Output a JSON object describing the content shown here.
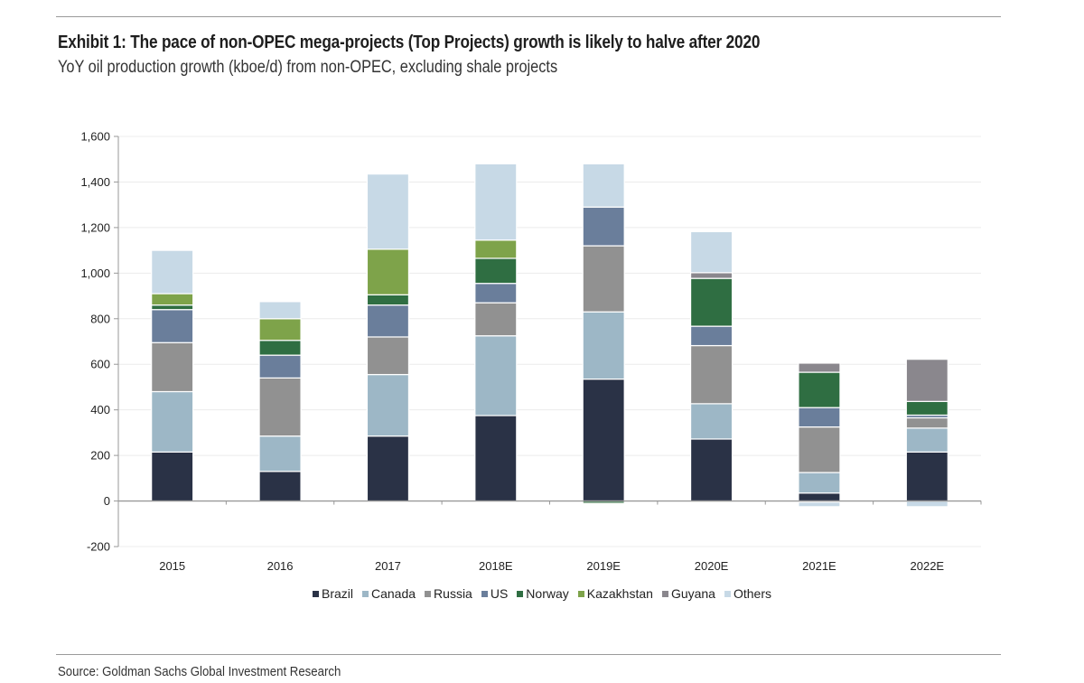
{
  "header": {
    "title": "Exhibit 1: The pace of non-OPEC mega-projects (Top Projects) growth is likely to halve after 2020",
    "subtitle": "YoY oil production growth (kboe/d) from non-OPEC, excluding shale projects"
  },
  "footer": {
    "source": "Source: Goldman Sachs Global Investment Research"
  },
  "chart_data": {
    "type": "bar",
    "stacked": true,
    "title": "Exhibit 1: The pace of non-OPEC mega-projects (Top Projects) growth is likely to halve after 2020",
    "subtitle": "YoY oil production growth (kboe/d) from non-OPEC, excluding shale projects",
    "xlabel": "",
    "ylabel": "",
    "ylim": [
      -200,
      1600
    ],
    "yticks": [
      -200,
      0,
      200,
      400,
      600,
      800,
      1000,
      1200,
      1400,
      1600
    ],
    "ytick_labels": [
      "-200",
      "0",
      "200",
      "400",
      "600",
      "800",
      "1,000",
      "1,200",
      "1,400",
      "1,600"
    ],
    "grid": true,
    "legend_position": "bottom",
    "categories": [
      "2015",
      "2016",
      "2017",
      "2018E",
      "2019E",
      "2020E",
      "2021E",
      "2022E"
    ],
    "series": [
      {
        "name": "Brazil",
        "color": "#2a3246",
        "values": [
          215,
          130,
          285,
          375,
          535,
          272,
          35,
          215
        ]
      },
      {
        "name": "Canada",
        "color": "#9db7c6",
        "values": [
          265,
          155,
          270,
          350,
          295,
          155,
          90,
          105
        ]
      },
      {
        "name": "Russia",
        "color": "#919191",
        "values": [
          215,
          255,
          165,
          145,
          290,
          255,
          200,
          45
        ]
      },
      {
        "name": "US",
        "color": "#6a7e9b",
        "values": [
          145,
          100,
          140,
          85,
          170,
          85,
          85,
          12
        ]
      },
      {
        "name": "Norway",
        "color": "#2f6e42",
        "values": [
          20,
          65,
          45,
          110,
          -10,
          210,
          155,
          60
        ]
      },
      {
        "name": "Kazakhstan",
        "color": "#7ea34a",
        "values": [
          50,
          95,
          200,
          80,
          -5,
          -5,
          -5,
          0
        ]
      },
      {
        "name": "Guyana",
        "color": "#8a878d",
        "values": [
          0,
          0,
          0,
          0,
          0,
          25,
          40,
          185
        ]
      },
      {
        "name": "Others",
        "color": "#c7d9e6",
        "values": [
          190,
          75,
          330,
          335,
          190,
          180,
          -20,
          -25
        ]
      }
    ]
  }
}
